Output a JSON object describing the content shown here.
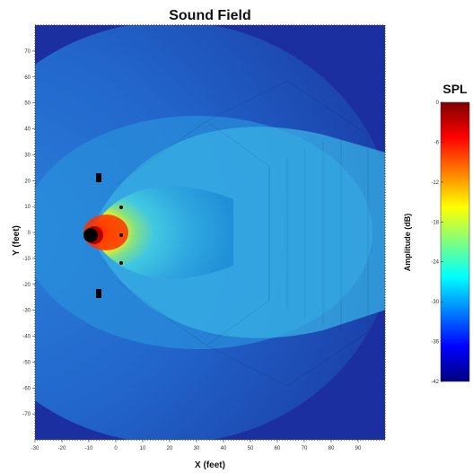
{
  "chart_data": {
    "type": "heatmap",
    "title": "Sound Field",
    "xlabel": "X (feet)",
    "ylabel": "Y (feet)",
    "xlim": [
      -30,
      100
    ],
    "ylim": [
      -80,
      80
    ],
    "x_ticks": [
      -30,
      -20,
      -10,
      0,
      10,
      20,
      30,
      40,
      50,
      60,
      70,
      80,
      90
    ],
    "y_ticks": [
      70,
      60,
      50,
      40,
      30,
      20,
      10,
      0,
      -10,
      -20,
      -30,
      -40,
      -50,
      -60,
      -70
    ],
    "source": {
      "label": "speaker array",
      "x": -12,
      "y": 0
    },
    "colorbar": {
      "title": "SPL",
      "label": "Amplitude (dB)",
      "range": [
        -42,
        0
      ],
      "ticks": [
        0,
        -6,
        -12,
        -18,
        -24,
        -30,
        -36,
        -42
      ],
      "colormap": [
        "#00007f",
        "#0000ff",
        "#007fff",
        "#00ffff",
        "#7fff7f",
        "#ffff00",
        "#ff7f00",
        "#ff0000",
        "#7f0000"
      ]
    },
    "field_description": "Directional lobe: loudest (~0 dB) near source at (-12,0), decaying to about -24 dB across the seating area and below -36 dB off-axis"
  }
}
